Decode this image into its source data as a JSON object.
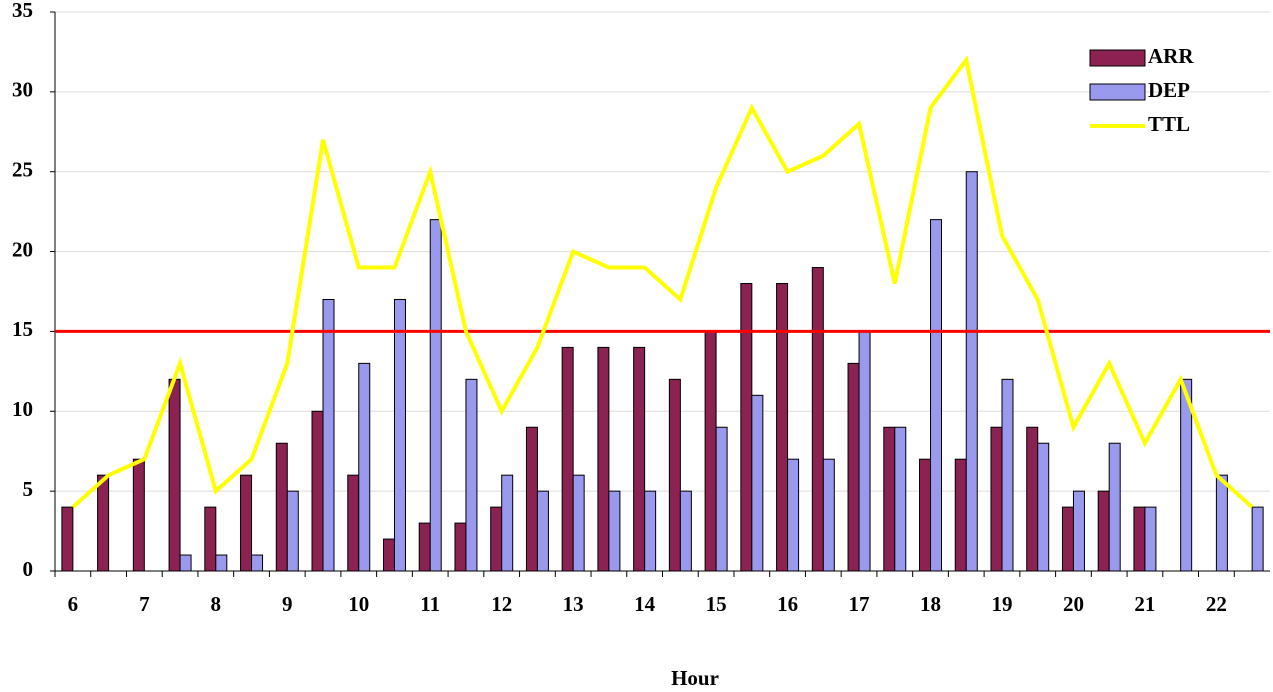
{
  "chart_data": {
    "type": "bar",
    "x_label": "Hour",
    "categories": [
      "6",
      null,
      "7",
      null,
      "8",
      null,
      "9",
      null,
      "10",
      null,
      "11",
      null,
      "12",
      null,
      "13",
      null,
      "14",
      null,
      "15",
      null,
      "16",
      null,
      "17",
      null,
      "18",
      null,
      "19",
      null,
      "20",
      null,
      "21",
      null,
      "22",
      null
    ],
    "series": [
      {
        "name": "ARR",
        "type": "bar",
        "color": "#8b2252",
        "values": [
          4,
          6,
          7,
          12,
          4,
          6,
          8,
          10,
          6,
          2,
          3,
          3,
          4,
          9,
          14,
          14,
          14,
          12,
          15,
          18,
          18,
          19,
          13,
          9,
          7,
          7,
          9,
          9,
          4,
          5,
          4,
          0,
          0,
          0
        ]
      },
      {
        "name": "DEP",
        "type": "bar",
        "color": "#9999ee",
        "values": [
          0,
          0,
          0,
          1,
          1,
          1,
          5,
          17,
          13,
          17,
          22,
          12,
          6,
          5,
          6,
          5,
          5,
          5,
          9,
          11,
          7,
          7,
          15,
          9,
          22,
          25,
          12,
          8,
          5,
          8,
          4,
          12,
          6,
          4
        ]
      },
      {
        "name": "TTL",
        "type": "line",
        "color": "#ffff00",
        "values": [
          4,
          6,
          7,
          13,
          5,
          7,
          13,
          27,
          19,
          19,
          25,
          15,
          10,
          14,
          20,
          19,
          19,
          17,
          24,
          29,
          25,
          26,
          28,
          18,
          29,
          32,
          21,
          17,
          9,
          13,
          8,
          12,
          6,
          4
        ]
      }
    ],
    "reference_line": {
      "value": 15,
      "color": "#ff0000"
    },
    "ylim": [
      0,
      35
    ],
    "yticks": [
      0,
      5,
      10,
      15,
      20,
      25,
      30,
      35
    ],
    "grid": true,
    "legend": "upper right"
  }
}
